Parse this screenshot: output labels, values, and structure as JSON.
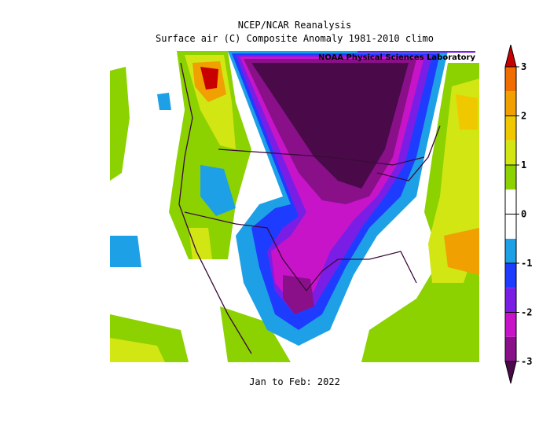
{
  "title": "NCEP/NCAR Reanalysis",
  "subtitle": "Surface air (C) Composite Anomaly 1981-2010 climo",
  "credit": "NOAA Physical Sciences Laboratory",
  "period": "Jan to Feb: 2022",
  "colorbar": {
    "ticks": [
      -3,
      -2,
      -1,
      0,
      1,
      2,
      3
    ],
    "below_color": "#4a0a4a",
    "above_color": "#c80000",
    "colors": [
      "#8a108a",
      "#c814c8",
      "#7a1ee6",
      "#1e3cff",
      "#1ea0e6",
      "#ffffff",
      "#ffffff",
      "#8cd200",
      "#d2e614",
      "#f0c800",
      "#f0a000",
      "#f06e00"
    ]
  }
}
